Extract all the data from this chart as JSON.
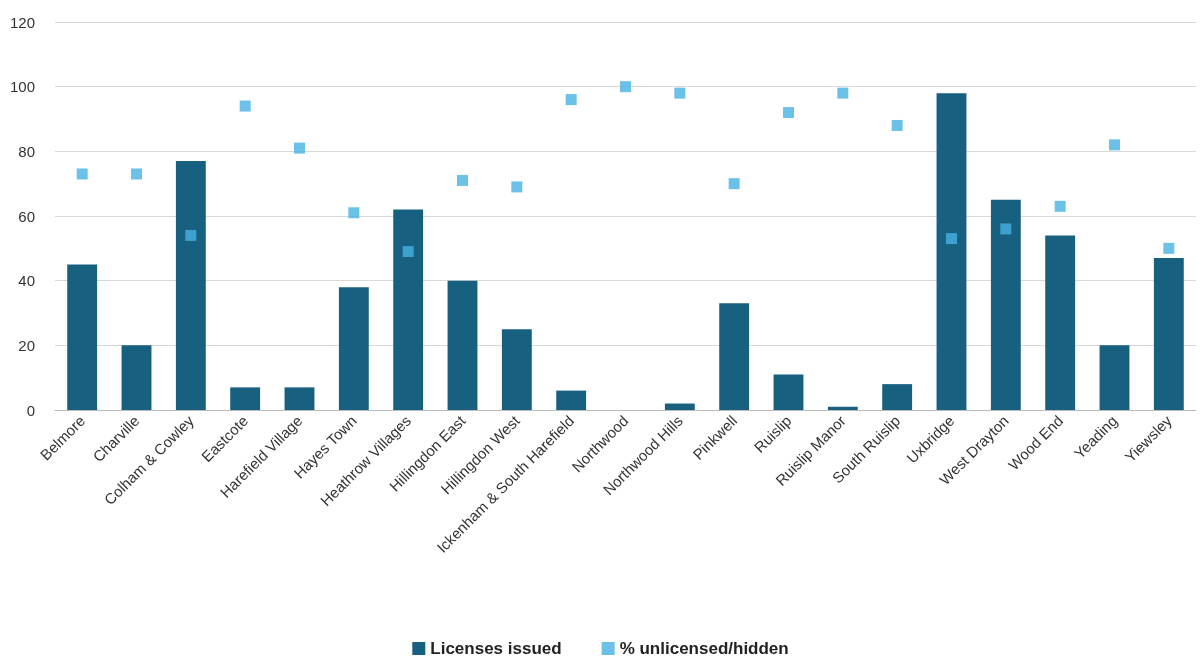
{
  "chart_data": {
    "type": "bar",
    "categories": [
      "Belmore",
      "Charville",
      "Colham & Cowley",
      "Eastcote",
      "Harefield Village",
      "Hayes Town",
      "Heathrow Villages",
      "Hillingdon East",
      "Hillingdon West",
      "Ickenham & South Harefield",
      "Northwood",
      "Northwood Hills",
      "Pinkwell",
      "Ruislip",
      "Ruislip Manor",
      "South Ruislip",
      "Uxbridge",
      "West Drayton",
      "Wood End",
      "Yeading",
      "Yiewsley"
    ],
    "series": [
      {
        "name": "Licenses issued",
        "color": "#17607f",
        "values": [
          45,
          20,
          77,
          7,
          7,
          38,
          62,
          40,
          25,
          6,
          0,
          2,
          33,
          11,
          1,
          8,
          98,
          65,
          54,
          20,
          47
        ]
      },
      {
        "name": "% unlicensed/hidden",
        "type": "scatter",
        "color": "#47b2e4",
        "marker": "square",
        "values": [
          73,
          73,
          54,
          94,
          81,
          61,
          49,
          71,
          69,
          96,
          100,
          98,
          70,
          92,
          98,
          88,
          53,
          56,
          63,
          82,
          50
        ]
      }
    ],
    "ylim": [
      0,
      120
    ],
    "yticks": [
      0,
      20,
      40,
      60,
      80,
      100,
      120
    ],
    "grid": "y",
    "legend": "bottom"
  }
}
